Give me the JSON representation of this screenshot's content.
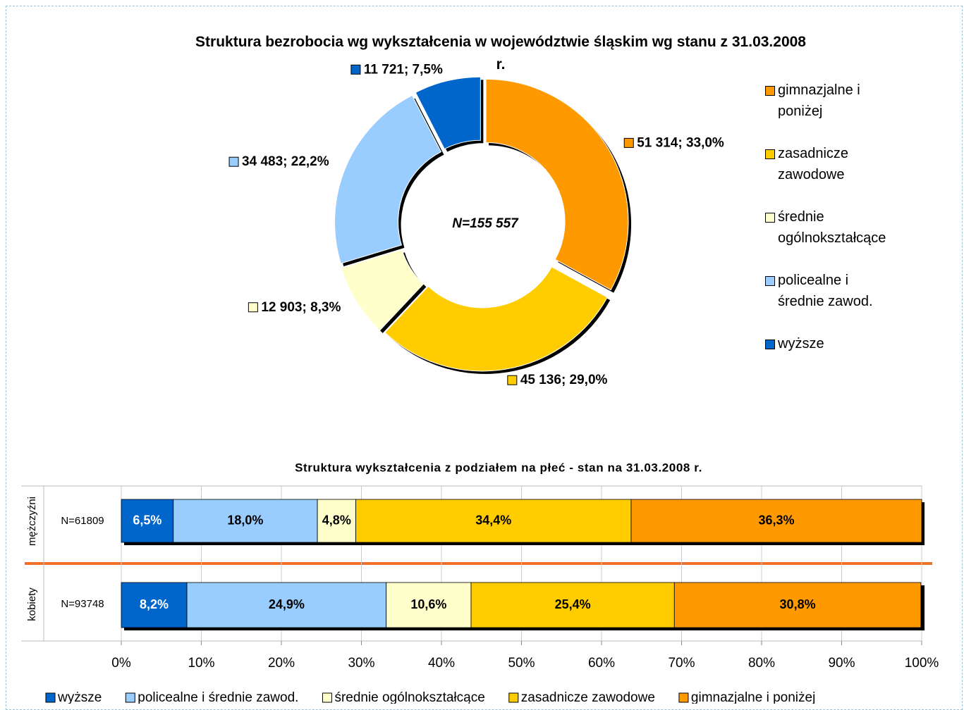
{
  "chart_data": [
    {
      "type": "pie",
      "title": "Struktura bezrobocia wg wykształcenia w województwie śląskim wg stanu z 31.03.2008 r.",
      "annotation": "N=155 557",
      "categories": [
        "gimnazjalne i poniżej",
        "zasadnicze zawodowe",
        "średnie ogólnokształcące",
        "policealne i średnie zawod.",
        "wyższe"
      ],
      "values": [
        51314,
        45136,
        12903,
        34483,
        11721
      ],
      "value_labels": [
        "51 314; 33,0%",
        "45 136; 29,0%",
        "12 903; 8,3%",
        "34 483; 22,2%",
        "11 721; 7,5%"
      ],
      "colors": [
        "#ff9900",
        "#ffcc00",
        "#ffffcc",
        "#99ccff",
        "#0066cc"
      ],
      "donut": true,
      "legend": "right"
    },
    {
      "type": "bar",
      "orientation": "horizontal",
      "stacked": true,
      "title": "Struktura wykształcenia z podziałem na płeć - stan na 31.03.2008 r.",
      "categories": [
        "mężczyźni",
        "kobiety"
      ],
      "annotations": [
        "N=61809",
        "N=93748"
      ],
      "series": [
        {
          "name": "wyższe",
          "color": "#0066cc",
          "label_color": "#ffffff",
          "values": [
            6.5,
            8.2
          ],
          "value_labels": [
            "6,5%",
            "8,2%"
          ]
        },
        {
          "name": "policealne i średnie zawod.",
          "color": "#99ccff",
          "label_color": "#000000",
          "values": [
            18.0,
            24.9
          ],
          "value_labels": [
            "18,0%",
            "24,9%"
          ]
        },
        {
          "name": "średnie ogólnokształcące",
          "color": "#ffffcc",
          "label_color": "#000000",
          "values": [
            4.8,
            10.6
          ],
          "value_labels": [
            "4,8%",
            "10,6%"
          ]
        },
        {
          "name": "zasadnicze zawodowe",
          "color": "#ffcc00",
          "label_color": "#000000",
          "values": [
            34.4,
            25.4
          ],
          "value_labels": [
            "34,4%",
            "25,4%"
          ]
        },
        {
          "name": "gimnazjalne i poniżej",
          "color": "#ff9900",
          "label_color": "#000000",
          "values": [
            36.3,
            30.8
          ],
          "value_labels": [
            "36,3%",
            "30,8%"
          ]
        }
      ],
      "xlim": [
        0,
        100
      ],
      "xticks": [
        {
          "value": 0,
          "label": "0%"
        },
        {
          "value": 10,
          "label": "10%"
        },
        {
          "value": 20,
          "label": "20%"
        },
        {
          "value": 30,
          "label": "30%"
        },
        {
          "value": 40,
          "label": "40%"
        },
        {
          "value": 50,
          "label": "50%"
        },
        {
          "value": 60,
          "label": "60%"
        },
        {
          "value": 70,
          "label": "70%"
        },
        {
          "value": 80,
          "label": "80%"
        },
        {
          "value": 90,
          "label": "90%"
        },
        {
          "value": 100,
          "label": "100%"
        }
      ],
      "grid": true,
      "legend": "bottom"
    }
  ]
}
